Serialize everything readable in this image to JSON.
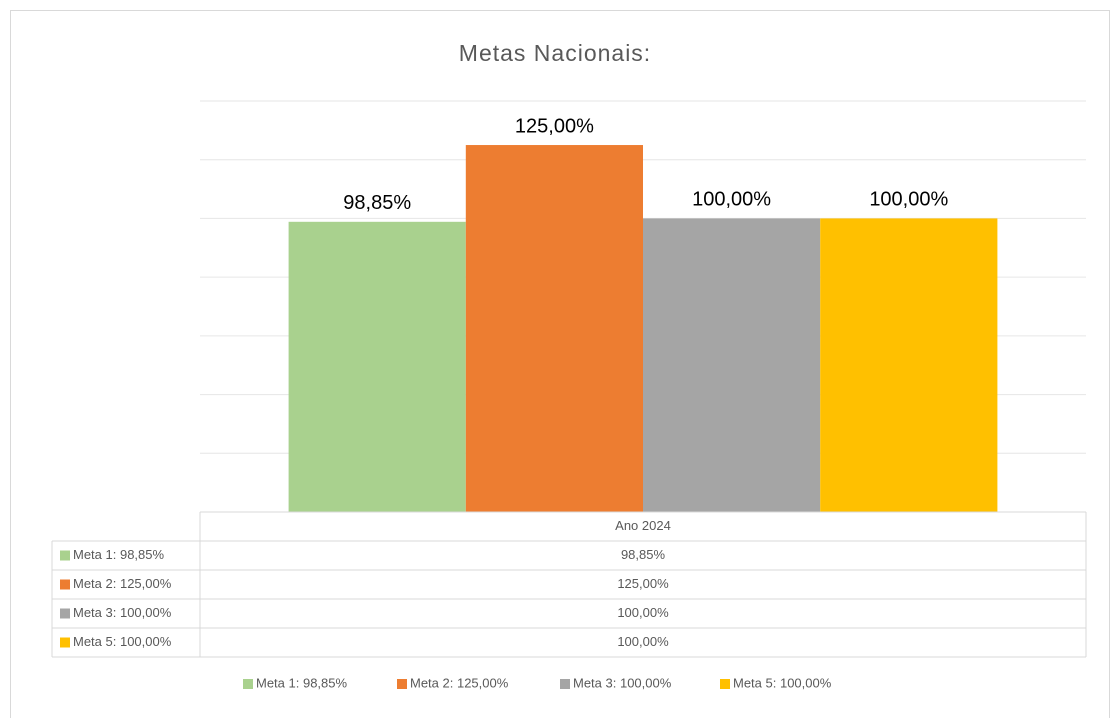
{
  "chart_data": {
    "type": "bar",
    "title": "Metas Nacionais:",
    "categories": [
      "Ano 2024"
    ],
    "series": [
      {
        "name": "Meta 1: 98,85%",
        "color": "#a9d18e",
        "values": [
          98.85
        ],
        "value_labels": [
          "98,85%"
        ]
      },
      {
        "name": "Meta 2: 125,00%",
        "color": "#ed7d31",
        "values": [
          125
        ],
        "value_labels": [
          "125,00%"
        ]
      },
      {
        "name": "Meta 3: 100,00%",
        "color": "#a5a5a5",
        "values": [
          100
        ],
        "value_labels": [
          "100,00%"
        ]
      },
      {
        "name": "Meta 5: 100,00%",
        "color": "#ffc000",
        "values": [
          100
        ],
        "value_labels": [
          "100,00%"
        ]
      }
    ],
    "ylim": [
      0,
      140
    ],
    "yticks": [
      0,
      20,
      40,
      60,
      80,
      100,
      120,
      140
    ],
    "grid": true
  }
}
